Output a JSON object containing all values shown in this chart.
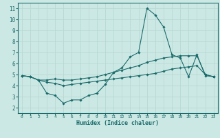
{
  "xlabel": "Humidex (Indice chaleur)",
  "xlim": [
    -0.5,
    23.5
  ],
  "ylim": [
    1.5,
    11.5
  ],
  "yticks": [
    2,
    3,
    4,
    5,
    6,
    7,
    8,
    9,
    10,
    11
  ],
  "xticks": [
    0,
    1,
    2,
    3,
    4,
    5,
    6,
    7,
    8,
    9,
    10,
    11,
    12,
    13,
    14,
    15,
    16,
    17,
    18,
    19,
    20,
    21,
    22,
    23
  ],
  "bg_color": "#cce8e4",
  "line_color": "#1a6b6b",
  "grid_color": "#b8d8d4",
  "series": [
    {
      "x": [
        0,
        1,
        2,
        3,
        4,
        5,
        6,
        7,
        8,
        9,
        10,
        11,
        12,
        13,
        14,
        15,
        16,
        17,
        18,
        19,
        20,
        21,
        22,
        23
      ],
      "y": [
        4.9,
        4.8,
        4.5,
        3.3,
        3.1,
        2.4,
        2.7,
        2.7,
        3.1,
        3.3,
        4.1,
        5.2,
        5.6,
        6.6,
        7.0,
        11.0,
        10.4,
        9.3,
        6.8,
        6.5,
        4.8,
        6.8,
        4.9,
        4.8
      ]
    },
    {
      "x": [
        0,
        1,
        2,
        3,
        4,
        5,
        6,
        7,
        8,
        9,
        10,
        11,
        12,
        13,
        14,
        15,
        16,
        17,
        18,
        19,
        20,
        21,
        22,
        23
      ],
      "y": [
        4.9,
        4.8,
        4.5,
        4.5,
        4.6,
        4.5,
        4.5,
        4.6,
        4.7,
        4.8,
        5.0,
        5.2,
        5.4,
        5.6,
        5.8,
        6.1,
        6.3,
        6.5,
        6.6,
        6.7,
        6.7,
        6.7,
        5.0,
        4.8
      ]
    },
    {
      "x": [
        0,
        1,
        2,
        3,
        4,
        5,
        6,
        7,
        8,
        9,
        10,
        11,
        12,
        13,
        14,
        15,
        16,
        17,
        18,
        19,
        20,
        21,
        22,
        23
      ],
      "y": [
        4.9,
        4.8,
        4.5,
        4.3,
        4.2,
        4.0,
        4.1,
        4.2,
        4.3,
        4.4,
        4.5,
        4.6,
        4.7,
        4.8,
        4.9,
        5.0,
        5.1,
        5.3,
        5.5,
        5.6,
        5.7,
        5.8,
        5.0,
        4.8
      ]
    }
  ]
}
